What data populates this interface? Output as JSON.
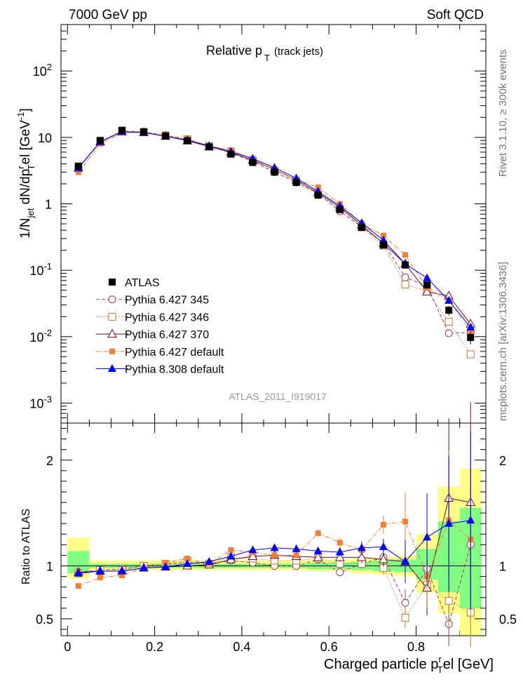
{
  "header": {
    "left": "7000 GeV pp",
    "right": "Soft QCD",
    "side_top": "Rivet 3.1.10, ≥ 300k events",
    "side_bottom": "mcplots.cern.ch [arXiv:1306.3436]",
    "watermark": "ATLAS_2011_I919017"
  },
  "chart_data": {
    "type": "scatter",
    "title_main": "Relative p",
    "title_sub": "T",
    "title_suffix": "(track jets)",
    "ylabel_main": "1/N",
    "ylabel_sub1": "jet",
    "ylabel_mid": " dN/dp",
    "ylabel_sup": "r",
    "ylabel_sub2": "T",
    "ylabel_end": "el [GeV",
    "ylabel_sup2": "-1",
    "ylabel_close": "]",
    "ratio_ylabel": "Ratio to ATLAS",
    "xlabel_main": "Charged particle p",
    "xlabel_sup": "r",
    "xlabel_sub": "T",
    "xlabel_end": "el [GeV]",
    "xlim": [
      -0.015,
      0.96
    ],
    "ylim": [
      0.0005,
      500
    ],
    "yscale": "log",
    "ratio_ylim": [
      0.34,
      2.35
    ],
    "x_ticks": [
      "0",
      "0.2",
      "0.4",
      "0.6",
      "0.8"
    ],
    "y_ticks": [
      {
        "v": 0.001,
        "m": "10",
        "e": "-3"
      },
      {
        "v": 0.01,
        "m": "10",
        "e": "-2"
      },
      {
        "v": 0.1,
        "m": "10",
        "e": "-1"
      },
      {
        "v": 1,
        "m": "1",
        "e": ""
      },
      {
        "v": 10,
        "m": "10",
        "e": ""
      },
      {
        "v": 100,
        "m": "10",
        "e": "2"
      }
    ],
    "ratio_ticks": [
      "0.5",
      "1",
      "2"
    ],
    "x": [
      0.025,
      0.075,
      0.125,
      0.175,
      0.225,
      0.275,
      0.325,
      0.375,
      0.425,
      0.475,
      0.525,
      0.575,
      0.625,
      0.675,
      0.725,
      0.775,
      0.825,
      0.875,
      0.925
    ],
    "bin_edges": [
      0,
      0.05,
      0.1,
      0.15,
      0.2,
      0.25,
      0.3,
      0.35,
      0.4,
      0.45,
      0.5,
      0.55,
      0.6,
      0.65,
      0.7,
      0.75,
      0.8,
      0.85,
      0.9,
      0.95
    ],
    "band_yellow": [
      [
        0.88,
        1.27
      ],
      [
        0.96,
        1.05
      ],
      [
        0.96,
        1.05
      ],
      [
        0.96,
        1.05
      ],
      [
        0.96,
        1.05
      ],
      [
        0.96,
        1.05
      ],
      [
        0.96,
        1.05
      ],
      [
        0.96,
        1.05
      ],
      [
        0.96,
        1.05
      ],
      [
        0.96,
        1.05
      ],
      [
        0.96,
        1.05
      ],
      [
        0.95,
        1.06
      ],
      [
        0.95,
        1.06
      ],
      [
        0.93,
        1.07
      ],
      [
        0.92,
        1.08
      ],
      [
        0.9,
        1.1
      ],
      [
        0.75,
        1.3
      ],
      [
        0.55,
        1.75
      ],
      [
        0.34,
        1.92
      ]
    ],
    "band_green": [
      [
        0.93,
        1.14
      ],
      [
        0.98,
        1.02
      ],
      [
        0.98,
        1.02
      ],
      [
        0.98,
        1.02
      ],
      [
        0.98,
        1.02
      ],
      [
        0.98,
        1.02
      ],
      [
        0.98,
        1.02
      ],
      [
        0.98,
        1.02
      ],
      [
        0.98,
        1.02
      ],
      [
        0.98,
        1.02
      ],
      [
        0.98,
        1.02
      ],
      [
        0.97,
        1.03
      ],
      [
        0.97,
        1.03
      ],
      [
        0.96,
        1.04
      ],
      [
        0.95,
        1.05
      ],
      [
        0.94,
        1.06
      ],
      [
        0.87,
        1.16
      ],
      [
        0.75,
        1.42
      ],
      [
        0.6,
        1.55
      ]
    ],
    "series": [
      {
        "name": "ATLAS",
        "kind": "data",
        "color": "#000000",
        "values": [
          3.7,
          9.0,
          12.8,
          12.1,
          10.5,
          8.9,
          7.2,
          5.6,
          4.2,
          3.0,
          2.1,
          1.35,
          0.82,
          0.44,
          0.24,
          0.12,
          0.06,
          0.025,
          0.0097
        ],
        "errors": [
          0.3,
          0.5,
          0.6,
          0.5,
          0.4,
          0.3,
          0.3,
          0.2,
          0.15,
          0.1,
          0.08,
          0.05,
          0.03,
          0.02,
          0.012,
          0.008,
          0.006,
          0.004,
          0.002
        ]
      },
      {
        "name": "Pythia 6.427 345",
        "kind": "mc",
        "color": "#a23c50",
        "marker": "circle-open",
        "dash": "5,3",
        "ratio_err": true,
        "ratio": [
          0.94,
          0.96,
          0.97,
          1.0,
          1.02,
          1.03,
          1.02,
          1.05,
          1.03,
          1.0,
          1.0,
          1.06,
          0.94,
          1.02,
          1.08,
          0.65,
          0.97,
          0.45,
          1.2
        ]
      },
      {
        "name": "Pythia 6.427 346",
        "kind": "mc",
        "color": "#b8763a",
        "marker": "square-open",
        "dash": "1.5,2.5",
        "ratio_err": true,
        "ratio": [
          0.93,
          0.96,
          0.96,
          1.0,
          1.02,
          1.05,
          1.02,
          1.08,
          1.07,
          1.05,
          1.05,
          1.07,
          1.02,
          1.02,
          0.98,
          0.51,
          0.82,
          0.67,
          0.56
        ]
      },
      {
        "name": "Pythia 6.427 370",
        "kind": "mc",
        "color": "#6b0f22",
        "marker": "triangle-open",
        "dash": "",
        "ratio_err": true,
        "ratio": [
          0.94,
          0.95,
          0.95,
          0.98,
          0.99,
          1.0,
          1.01,
          1.06,
          1.09,
          1.1,
          1.09,
          1.08,
          1.08,
          1.08,
          1.06,
          1.04,
          0.79,
          1.64,
          1.6
        ]
      },
      {
        "name": "Pythia 6.427 default",
        "kind": "mc",
        "color": "#f07f3a",
        "marker": "square-filled",
        "dash": "6,2,1.5,2",
        "ratio_err": true,
        "ratio": [
          0.81,
          0.89,
          0.91,
          0.98,
          1.03,
          1.07,
          1.02,
          1.15,
          1.13,
          1.1,
          1.1,
          1.31,
          1.22,
          1.15,
          1.39,
          1.42,
          0.9,
          1.43,
          1.25
        ]
      },
      {
        "name": "Pythia 8.308 default",
        "kind": "mc",
        "color": "#0000ff",
        "marker": "triangle-filled",
        "dash": "",
        "ratio_err": true,
        "ratio": [
          0.93,
          0.95,
          0.95,
          0.98,
          0.99,
          1.02,
          1.04,
          1.09,
          1.15,
          1.17,
          1.16,
          1.14,
          1.13,
          1.17,
          1.18,
          1.04,
          1.27,
          1.4,
          1.43
        ]
      }
    ]
  }
}
